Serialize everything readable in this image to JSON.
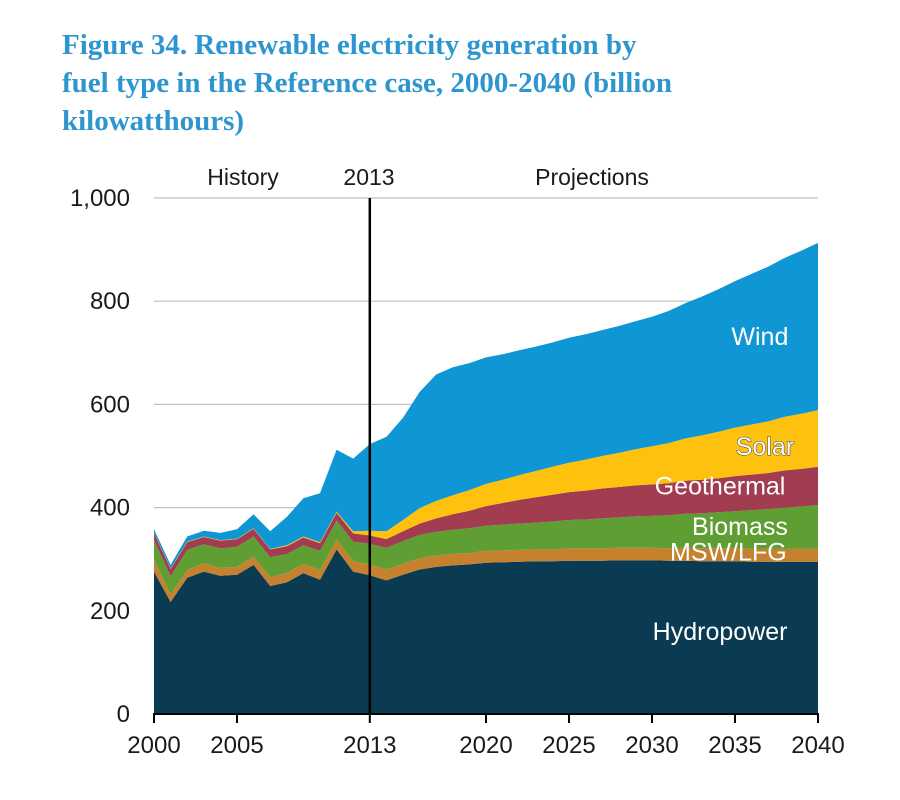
{
  "figure": {
    "title_lines": [
      "Figure 34. Renewable electricity generation by",
      "fuel type in the Reference case, 2000-2040 (billion",
      "kilowatthours)"
    ],
    "title_color": "#2e96cf"
  },
  "header_labels": {
    "history": "History",
    "divider_year": "2013",
    "projections": "Projections"
  },
  "colors": {
    "title_blue": "#2e96cf",
    "gridline": "#bfbfbf",
    "axis": "#000000",
    "divider_line": "#000000"
  },
  "chart_data": {
    "type": "area",
    "stacked": true,
    "title": "Figure 34. Renewable electricity generation by fuel type in the Reference case, 2000-2040 (billion kilowatthours)",
    "xlabel": "",
    "ylabel": "billion kilowatthours",
    "grid": true,
    "ylim": [
      0,
      1000
    ],
    "history_divider_year": 2013,
    "x": [
      2000,
      2001,
      2002,
      2003,
      2004,
      2005,
      2006,
      2007,
      2008,
      2009,
      2010,
      2011,
      2012,
      2013,
      2014,
      2015,
      2016,
      2017,
      2018,
      2019,
      2020,
      2021,
      2022,
      2023,
      2024,
      2025,
      2026,
      2027,
      2028,
      2029,
      2030,
      2031,
      2032,
      2033,
      2034,
      2035,
      2036,
      2037,
      2038,
      2039,
      2040
    ],
    "x_ticks": [
      {
        "value": 2000,
        "label": "2000"
      },
      {
        "value": 2005,
        "label": "2005"
      },
      {
        "value": 2013,
        "label": "2013"
      },
      {
        "value": 2020,
        "label": "2020"
      },
      {
        "value": 2025,
        "label": "2025"
      },
      {
        "value": 2030,
        "label": "2030"
      },
      {
        "value": 2035,
        "label": "2035"
      },
      {
        "value": 2040,
        "label": "2040"
      }
    ],
    "y_ticks": [
      {
        "value": 0,
        "label": "0"
      },
      {
        "value": 200,
        "label": "200"
      },
      {
        "value": 400,
        "label": "400"
      },
      {
        "value": 600,
        "label": "600"
      },
      {
        "value": 800,
        "label": "800"
      },
      {
        "value": 1000,
        "label": "1,000"
      }
    ],
    "series": [
      {
        "name": "Hydropower",
        "color": "#0b3a53",
        "values": [
          276,
          217,
          264,
          276,
          268,
          270,
          289,
          248,
          255,
          273,
          260,
          319,
          276,
          269,
          259,
          270,
          280,
          285,
          288,
          290,
          293,
          294,
          295,
          296,
          296,
          297,
          297,
          297,
          298,
          298,
          298,
          297,
          297,
          296,
          296,
          296,
          295,
          295,
          295,
          295,
          295
        ]
      },
      {
        "name": "MSW/LFG",
        "color": "#c6812f",
        "values": [
          23,
          15,
          15,
          16,
          15,
          15,
          16,
          17,
          18,
          18,
          19,
          19,
          20,
          21,
          21,
          21,
          22,
          22,
          22,
          22,
          23,
          23,
          23,
          23,
          23,
          24,
          24,
          24,
          24,
          24,
          24,
          24,
          25,
          25,
          25,
          25,
          25,
          25,
          25,
          25,
          25
        ]
      },
      {
        "name": "Biomass",
        "color": "#5e9e32",
        "values": [
          38,
          35,
          39,
          37,
          38,
          39,
          39,
          39,
          37,
          36,
          37,
          37,
          38,
          40,
          42,
          44,
          45,
          46,
          47,
          48,
          49,
          50,
          51,
          52,
          54,
          55,
          56,
          58,
          59,
          61,
          62,
          64,
          66,
          68,
          70,
          72,
          75,
          77,
          80,
          82,
          85
        ]
      },
      {
        "name": "Geothermal",
        "color": "#a13c51",
        "values": [
          14,
          14,
          15,
          14,
          15,
          15,
          15,
          15,
          15,
          15,
          15,
          15,
          16,
          16,
          17,
          19,
          22,
          26,
          30,
          34,
          38,
          42,
          46,
          49,
          52,
          54,
          56,
          58,
          59,
          60,
          61,
          62,
          64,
          65,
          66,
          68,
          69,
          70,
          72,
          73,
          74
        ]
      },
      {
        "name": "Solar",
        "color": "#fdc10e",
        "values": [
          1,
          1,
          1,
          1,
          1,
          1,
          1,
          1,
          2,
          2,
          2,
          2,
          4,
          9,
          15,
          22,
          30,
          34,
          37,
          40,
          43,
          45,
          48,
          51,
          54,
          57,
          60,
          63,
          66,
          70,
          74,
          78,
          82,
          86,
          90,
          94,
          97,
          100,
          104,
          107,
          110
        ]
      },
      {
        "name": "Wind",
        "color": "#0f96d4",
        "values": [
          6,
          7,
          10,
          11,
          14,
          18,
          27,
          34,
          55,
          74,
          95,
          120,
          141,
          168,
          183,
          198,
          225,
          245,
          248,
          246,
          245,
          243,
          242,
          241,
          241,
          242,
          243,
          244,
          246,
          248,
          251,
          256,
          262,
          269,
          276,
          284,
          292,
          300,
          308,
          316,
          324
        ]
      }
    ],
    "annotations": [
      {
        "text": "Wind",
        "year": 2036.5,
        "value": 715,
        "outlined": false
      },
      {
        "text": "Solar",
        "year": 2036.8,
        "value": 502,
        "outlined": true
      },
      {
        "text": "Geothermal",
        "year": 2034.1,
        "value": 425,
        "outlined": false
      },
      {
        "text": "Biomass",
        "year": 2035.3,
        "value": 347,
        "outlined": false
      },
      {
        "text": "MSW/LFG",
        "year": 2034.6,
        "value": 297,
        "outlined": false
      },
      {
        "text": "Hydropower",
        "year": 2034.1,
        "value": 143,
        "outlined": false
      }
    ]
  }
}
